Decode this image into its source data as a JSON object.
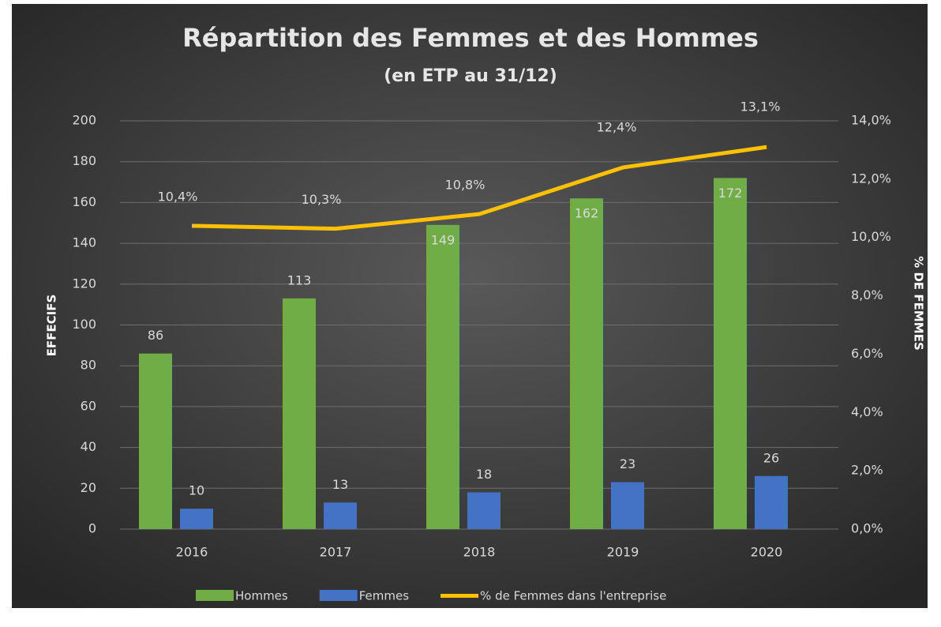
{
  "chart_data": {
    "type": "bar",
    "title": "Répartition  des Femmes et des Hommes",
    "subtitle": "(en ETP au 31/12)",
    "y_label": "EFFECIFS",
    "y2_label": "% DE FEMMES",
    "categories": [
      "2016",
      "2017",
      "2018",
      "2019",
      "2020"
    ],
    "series": [
      {
        "name": "Hommes",
        "color": "#70ad47",
        "values": [
          86,
          113,
          149,
          162,
          172
        ]
      },
      {
        "name": "Femmes",
        "color": "#4472c4",
        "values": [
          10,
          13,
          18,
          23,
          26
        ]
      },
      {
        "name": "% de Femmes dans l'entreprise",
        "color": "#ffc000",
        "type": "line",
        "axis": "y2",
        "values": [
          10.4,
          10.3,
          10.8,
          12.4,
          13.1
        ],
        "value_labels": [
          "10,4%",
          "10,3%",
          "10,8%",
          "12,4%",
          "13,1%"
        ]
      }
    ],
    "ylim": [
      0,
      200
    ],
    "yticks": [
      0,
      20,
      40,
      60,
      80,
      100,
      120,
      140,
      160,
      180,
      200
    ],
    "y2lim": [
      0,
      14
    ],
    "y2ticks": [
      {
        "value": 0,
        "label": "0,0%"
      },
      {
        "value": 2,
        "label": "2,0%"
      },
      {
        "value": 4,
        "label": "4,0%"
      },
      {
        "value": 6,
        "label": "6,0%"
      },
      {
        "value": 8,
        "label": "8,0%"
      },
      {
        "value": 10,
        "label": "10,0%"
      },
      {
        "value": 12,
        "label": "12,0%"
      },
      {
        "value": 14,
        "label": "14,0%"
      }
    ],
    "grid": true,
    "legend": "bottom"
  }
}
